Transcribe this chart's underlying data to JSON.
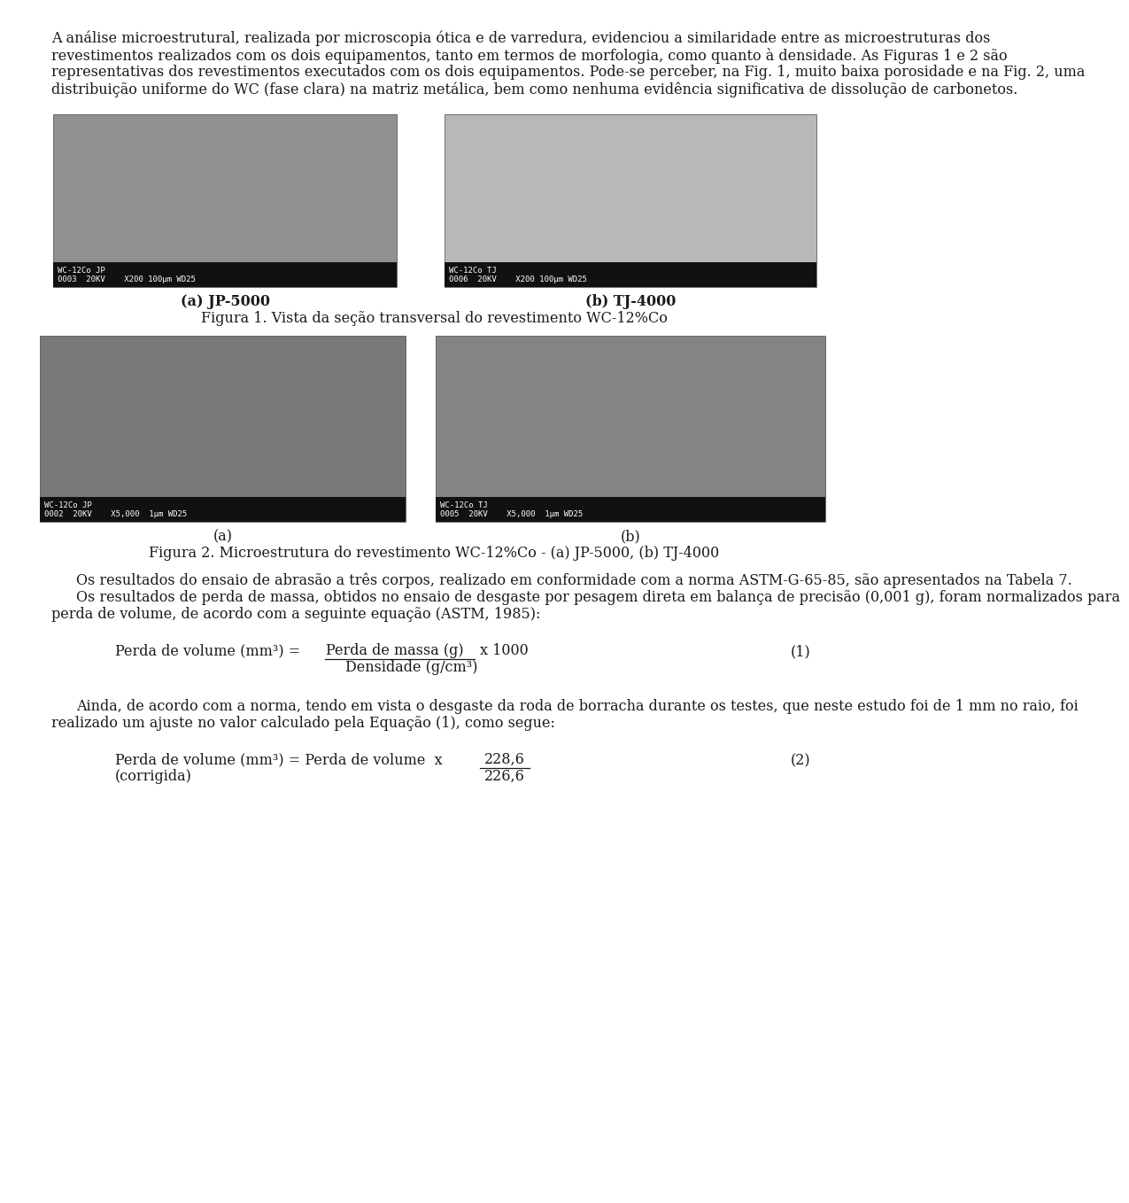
{
  "bg_color": "#ffffff",
  "text_color": "#1a1a1a",
  "font_size_body": 11.5,
  "paragraph1": "A análise microestrutural, realizada por microscopia ótica e de varredura, evidenciou a similaridade entre as microestruturas dos revestimentos realizados com os dois equipamentos, tanto em termos de morfologia, como quanto à densidade. As Figuras 1 e 2 são representativas dos revestimentos executados com os dois equipamentos. Pode-se perceber, na Fig. 1, muito baixa porosidade e na Fig. 2, uma distribuição uniforme do WC (fase clara) na matriz metálica, bem como nenhuma evidência significativa de dissolução de carbonetos.",
  "caption1_a": "(a) JP-5000",
  "caption1_b": "(b) TJ-4000",
  "figura1": "Figura 1. Vista da seção transversal do revestimento WC-12%Co",
  "caption2_a": "(a)",
  "caption2_b": "(b)",
  "figura2": "Figura 2. Microestrutura do revestimento WC-12%Co - (a) JP-5000, (b) TJ-4000",
  "para2": "Os resultados do ensaio de abrasão a três corpos, realizado em conformidade com a norma ASTM-G-65-85, são apresentados na Tabela 7.",
  "para3": "Os resultados de perda de massa, obtidos no ensaio de desgaste por pesagem direta em balança de precisão (0,001 g), foram normalizados para perda de volume, de acordo com a seguinte equação (ASTM, 1985):",
  "eq1_num": "(1)",
  "para4": "Ainda, de acordo com a norma, tendo em vista o desgaste da roda de borracha durante os testes, que neste estudo foi de 1 mm no raio, foi realizado um ajuste no valor calculado pela Equação (1), como segue:",
  "eq2_num": "(2)",
  "img1_label": "WC-12Co JP\n0003  20KV    X200 100µm WD25",
  "img2_label": "WC-12Co TJ\n0006  20KV    X200 100µm WD25",
  "img3_label": "WC-12Co JP\n0002  20KV    X5,000  1µm WD25",
  "img4_label": "WC-12Co TJ\n0005  20KV    X5,000  1µm WD25"
}
